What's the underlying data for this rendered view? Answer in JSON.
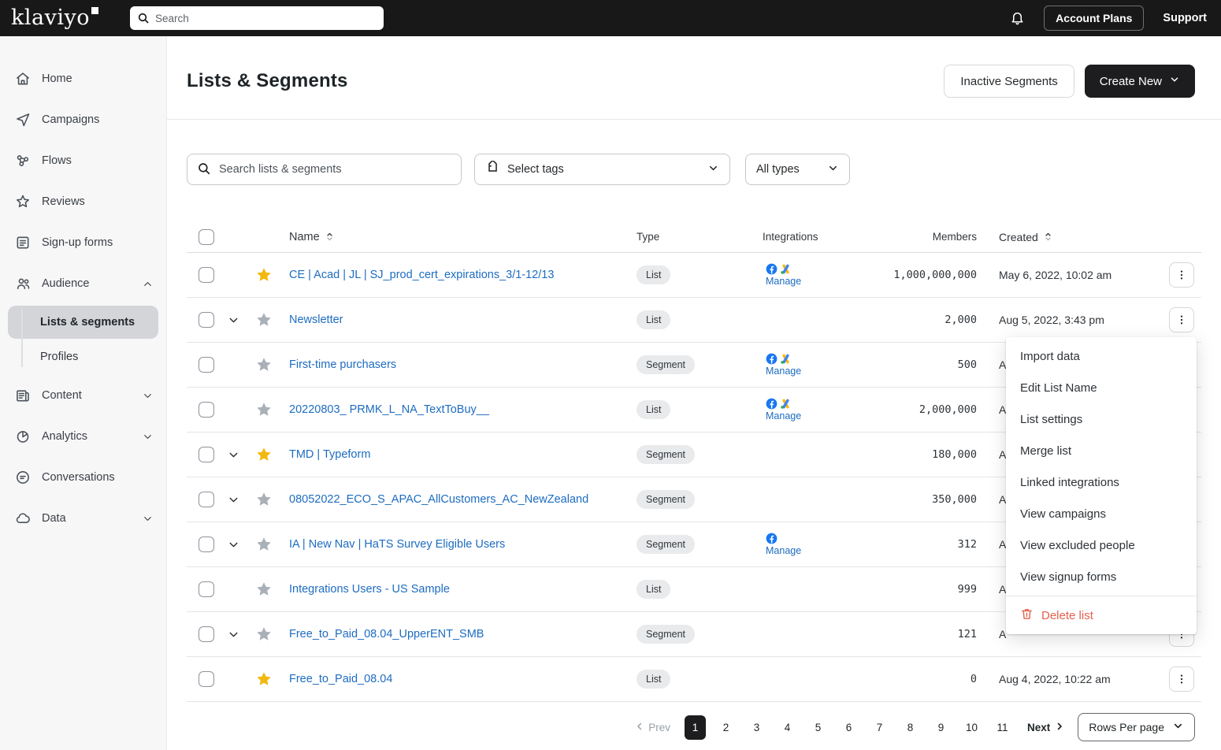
{
  "topbar": {
    "logo": "klaviyo",
    "search_placeholder": "Search",
    "account_plans_label": "Account Plans",
    "support_label": "Support"
  },
  "sidebar": {
    "items": [
      {
        "label": "Home",
        "icon": "home"
      },
      {
        "label": "Campaigns",
        "icon": "campaigns"
      },
      {
        "label": "Flows",
        "icon": "flows"
      },
      {
        "label": "Reviews",
        "icon": "reviews"
      },
      {
        "label": "Sign-up forms",
        "icon": "signup-forms"
      },
      {
        "label": "Audience",
        "icon": "audience",
        "chevron": "up",
        "children": [
          {
            "label": "Lists & segments",
            "active": true
          },
          {
            "label": "Profiles",
            "active": false
          }
        ]
      },
      {
        "label": "Content",
        "icon": "content",
        "chevron": "down"
      },
      {
        "label": "Analytics",
        "icon": "analytics",
        "chevron": "down"
      },
      {
        "label": "Conversations",
        "icon": "conversations"
      },
      {
        "label": "Data",
        "icon": "data",
        "chevron": "down"
      }
    ]
  },
  "header": {
    "title": "Lists & Segments",
    "inactive_segments_label": "Inactive Segments",
    "create_new_label": "Create New"
  },
  "filters": {
    "search_placeholder": "Search lists & segments",
    "tags_label": "Select tags",
    "types_label": "All types"
  },
  "table": {
    "columns": {
      "name": "Name",
      "type": "Type",
      "integrations": "Integrations",
      "members": "Members",
      "created": "Created"
    },
    "rows": [
      {
        "name": "CE | Acad | JL | SJ_prod_cert_expirations_3/1-12/13",
        "starred": true,
        "expandable": false,
        "type": "List",
        "integrations": [
          "facebook",
          "google-ads"
        ],
        "manage": "Manage",
        "members": "1,000,000,000",
        "created": "May 6, 2022, 10:02 am"
      },
      {
        "name": "Newsletter",
        "starred": false,
        "expandable": true,
        "type": "List",
        "integrations": [],
        "manage": null,
        "members": "2,000",
        "created": "Aug 5, 2022, 3:43 pm"
      },
      {
        "name": "First-time purchasers",
        "starred": false,
        "expandable": false,
        "type": "Segment",
        "integrations": [
          "facebook",
          "google-ads"
        ],
        "manage": "Manage",
        "members": "500",
        "created": "A"
      },
      {
        "name": "20220803_ PRMK_L_NA_TextToBuy__",
        "starred": false,
        "expandable": false,
        "type": "List",
        "integrations": [
          "facebook",
          "google-ads"
        ],
        "manage": "Manage",
        "members": "2,000,000",
        "created": "A"
      },
      {
        "name": "TMD | Typeform",
        "starred": true,
        "expandable": true,
        "type": "Segment",
        "integrations": [],
        "manage": null,
        "members": "180,000",
        "created": "A"
      },
      {
        "name": "08052022_ECO_S_APAC_AllCustomers_AC_NewZealand",
        "starred": false,
        "expandable": true,
        "type": "Segment",
        "integrations": [],
        "manage": null,
        "members": "350,000",
        "created": "A"
      },
      {
        "name": "IA | New Nav | HaTS Survey Eligible Users",
        "starred": false,
        "expandable": true,
        "type": "Segment",
        "integrations": [
          "facebook"
        ],
        "manage": "Manage",
        "members": "312",
        "created": "A"
      },
      {
        "name": "Integrations Users - US Sample",
        "starred": false,
        "expandable": false,
        "type": "List",
        "integrations": [],
        "manage": null,
        "members": "999",
        "created": "A"
      },
      {
        "name": "Free_to_Paid_08.04_UpperENT_SMB",
        "starred": false,
        "expandable": true,
        "type": "Segment",
        "integrations": [],
        "manage": null,
        "members": "121",
        "created": "A"
      },
      {
        "name": "Free_to_Paid_08.04",
        "starred": true,
        "expandable": false,
        "type": "List",
        "integrations": [],
        "manage": null,
        "members": "0",
        "created": "Aug 4, 2022, 10:22 am"
      }
    ]
  },
  "context_menu": {
    "items": [
      "Import data",
      "Edit List Name",
      "List settings",
      "Merge list",
      "Linked integrations",
      "View campaigns",
      "View excluded people",
      "View signup forms"
    ],
    "delete_label": "Delete list"
  },
  "pagination": {
    "prev_label": "Prev",
    "pages": [
      "1",
      "2",
      "3",
      "4",
      "5",
      "6",
      "7",
      "8",
      "9",
      "10",
      "11"
    ],
    "active_page": "1",
    "next_label": "Next",
    "rows_per_page_label": "Rows Per page"
  },
  "colors": {
    "topbar_bg": "#181818",
    "link_blue": "#1d6cc0",
    "star_active": "#F1B80E",
    "star_inactive": "#A9B0B7",
    "delete_red": "#E4604D",
    "facebook_blue": "#1877F2",
    "google_blue": "#4285F4",
    "google_yellow": "#FBBC04",
    "google_green": "#34A853"
  }
}
